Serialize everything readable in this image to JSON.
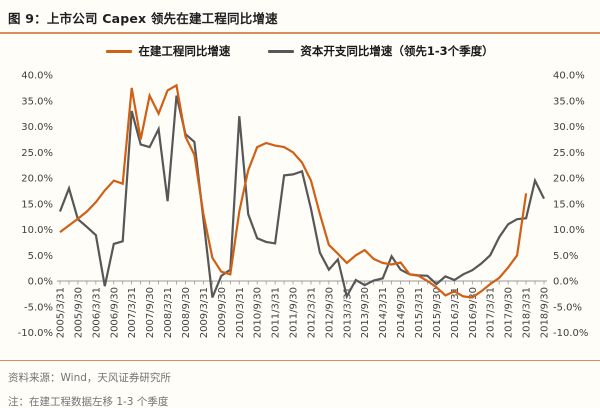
{
  "header": {
    "title": "图 9：上市公司 Capex 领先在建工程同比增速"
  },
  "legend": [
    {
      "label": "在建工程同比增速",
      "color": "#cf6016"
    },
    {
      "label": "资本开支同比增速（领先1-3个季度）",
      "color": "#575757"
    }
  ],
  "chart_data": {
    "type": "line",
    "title": "图 9：上市公司 Capex 领先在建工程同比增速",
    "frequency": "quarterly",
    "x_tick_labels": [
      "2005/3/31",
      "2005/9/30",
      "2006/3/31",
      "2006/9/30",
      "2007/3/31",
      "2007/9/30",
      "2008/3/31",
      "2008/9/30",
      "2009/3/31",
      "2009/9/30",
      "2010/3/31",
      "2010/9/30",
      "2011/3/31",
      "2011/9/30",
      "2012/3/31",
      "2012/9/30",
      "2013/3/31",
      "2013/9/30",
      "2014/3/31",
      "2014/9/30",
      "2015/3/31",
      "2015/9/30",
      "2016/3/31",
      "2016/9/30",
      "2017/3/31",
      "2017/9/30",
      "2018/3/31",
      "2018/9/30"
    ],
    "x_tick_every_n_points": 2,
    "ylim": [
      -10,
      40
    ],
    "y_ticks": [
      40,
      35,
      30,
      25,
      20,
      15,
      10,
      5,
      0,
      -5,
      -10
    ],
    "y_tick_labels": [
      "40.0%",
      "35.0%",
      "30.0%",
      "25.0%",
      "20.0%",
      "15.0%",
      "10.0%",
      "5.0%",
      "0.0%",
      "-5.0%",
      "-10.0%"
    ],
    "axes": {
      "left_labels": true,
      "right_labels": true,
      "grid": false
    },
    "series": [
      {
        "name": "在建工程同比增速",
        "color": "#cf6016",
        "values": [
          9.5,
          10.8,
          12.1,
          13.5,
          15.3,
          17.6,
          19.5,
          18.9,
          37.5,
          27.5,
          36,
          32.5,
          37,
          38,
          28,
          24.5,
          13,
          4.5,
          1.8,
          1.3,
          13.5,
          21.5,
          26,
          26.8,
          26.3,
          26,
          25,
          23,
          19.5,
          13,
          7,
          5.3,
          3.5,
          5,
          6,
          4.3,
          3.5,
          3.2,
          3.6,
          1.3,
          1,
          0,
          -1.2,
          -2.8,
          -2,
          -3,
          -3.2,
          -2,
          -0.6,
          0.6,
          2.6,
          5,
          17
        ]
      },
      {
        "name": "资本开支同比增速（领先1-3个季度）",
        "color": "#575757",
        "values": [
          13.5,
          18,
          12,
          10.5,
          8.9,
          -1,
          7.2,
          7.7,
          33,
          26.5,
          26,
          29.5,
          15.5,
          36,
          28.5,
          27,
          12,
          -3.2,
          1,
          2.2,
          32,
          13,
          8.3,
          7.6,
          7.3,
          20.5,
          20.7,
          21.3,
          14,
          5.5,
          2.2,
          4.2,
          -3,
          0.2,
          -0.8,
          0.1,
          0.5,
          4.8,
          2.2,
          1.3,
          1.1,
          1,
          -0.6,
          0.9,
          0.2,
          1.3,
          2.1,
          3.4,
          5,
          8.5,
          11,
          12,
          12.2,
          19.5,
          16
        ]
      }
    ]
  },
  "footer": {
    "source": "资料来源：Wind，天风证券研究所",
    "note": "注：在建工程数据左移 1-3 个季度"
  }
}
